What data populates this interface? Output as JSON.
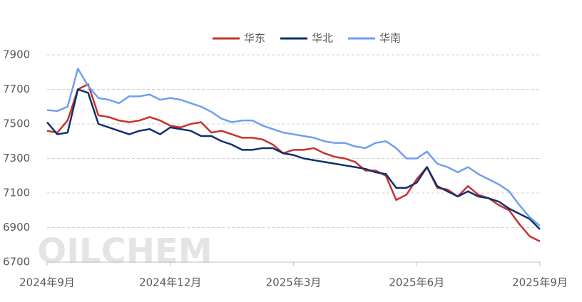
{
  "chart_data": {
    "type": "line",
    "watermark": "OILCHEM",
    "categories": [
      "2024年9月",
      null,
      null,
      null,
      null,
      null,
      null,
      null,
      null,
      null,
      null,
      null,
      "2024年12月",
      null,
      null,
      null,
      null,
      null,
      null,
      null,
      null,
      null,
      null,
      null,
      "2025年3月",
      null,
      null,
      null,
      null,
      null,
      null,
      null,
      null,
      null,
      null,
      null,
      "2025年6月",
      null,
      null,
      null,
      null,
      null,
      null,
      null,
      null,
      null,
      null,
      null,
      "2025年9月"
    ],
    "series": [
      {
        "name": "华东",
        "color": "#c8312b",
        "values": [
          7460,
          7450,
          7520,
          7700,
          7730,
          7550,
          7540,
          7520,
          7510,
          7520,
          7540,
          7520,
          7490,
          7480,
          7500,
          7510,
          7450,
          7460,
          7440,
          7420,
          7420,
          7410,
          7380,
          7330,
          7350,
          7350,
          7360,
          7330,
          7310,
          7300,
          7280,
          7230,
          7230,
          7200,
          7060,
          7090,
          7180,
          7250,
          7130,
          7120,
          7080,
          7140,
          7090,
          7070,
          7030,
          7000,
          6920,
          6850,
          6820
        ]
      },
      {
        "name": "华北",
        "color": "#0f2f6e",
        "values": [
          7510,
          7440,
          7450,
          7700,
          7680,
          7500,
          7480,
          7460,
          7440,
          7460,
          7470,
          7440,
          7480,
          7470,
          7460,
          7430,
          7430,
          7400,
          7380,
          7350,
          7350,
          7360,
          7360,
          7330,
          7320,
          7300,
          7290,
          7280,
          7270,
          7260,
          7250,
          7240,
          7220,
          7210,
          7130,
          7130,
          7160,
          7250,
          7140,
          7110,
          7080,
          7110,
          7080,
          7070,
          7050,
          7010,
          6980,
          6950,
          6890
        ]
      },
      {
        "name": "华南",
        "color": "#6f9ff0",
        "values": [
          7580,
          7575,
          7600,
          7820,
          7720,
          7650,
          7640,
          7620,
          7660,
          7660,
          7670,
          7640,
          7650,
          7640,
          7620,
          7600,
          7570,
          7530,
          7510,
          7520,
          7520,
          7490,
          7470,
          7450,
          7440,
          7430,
          7420,
          7400,
          7390,
          7390,
          7370,
          7360,
          7390,
          7400,
          7360,
          7300,
          7300,
          7340,
          7270,
          7250,
          7220,
          7250,
          7210,
          7180,
          7150,
          7110,
          7030,
          6960,
          6910
        ]
      }
    ],
    "ylim": [
      6700,
      7900
    ],
    "yticks": [
      6700,
      6900,
      7100,
      7300,
      7500,
      7700,
      7900
    ],
    "grid": true
  }
}
